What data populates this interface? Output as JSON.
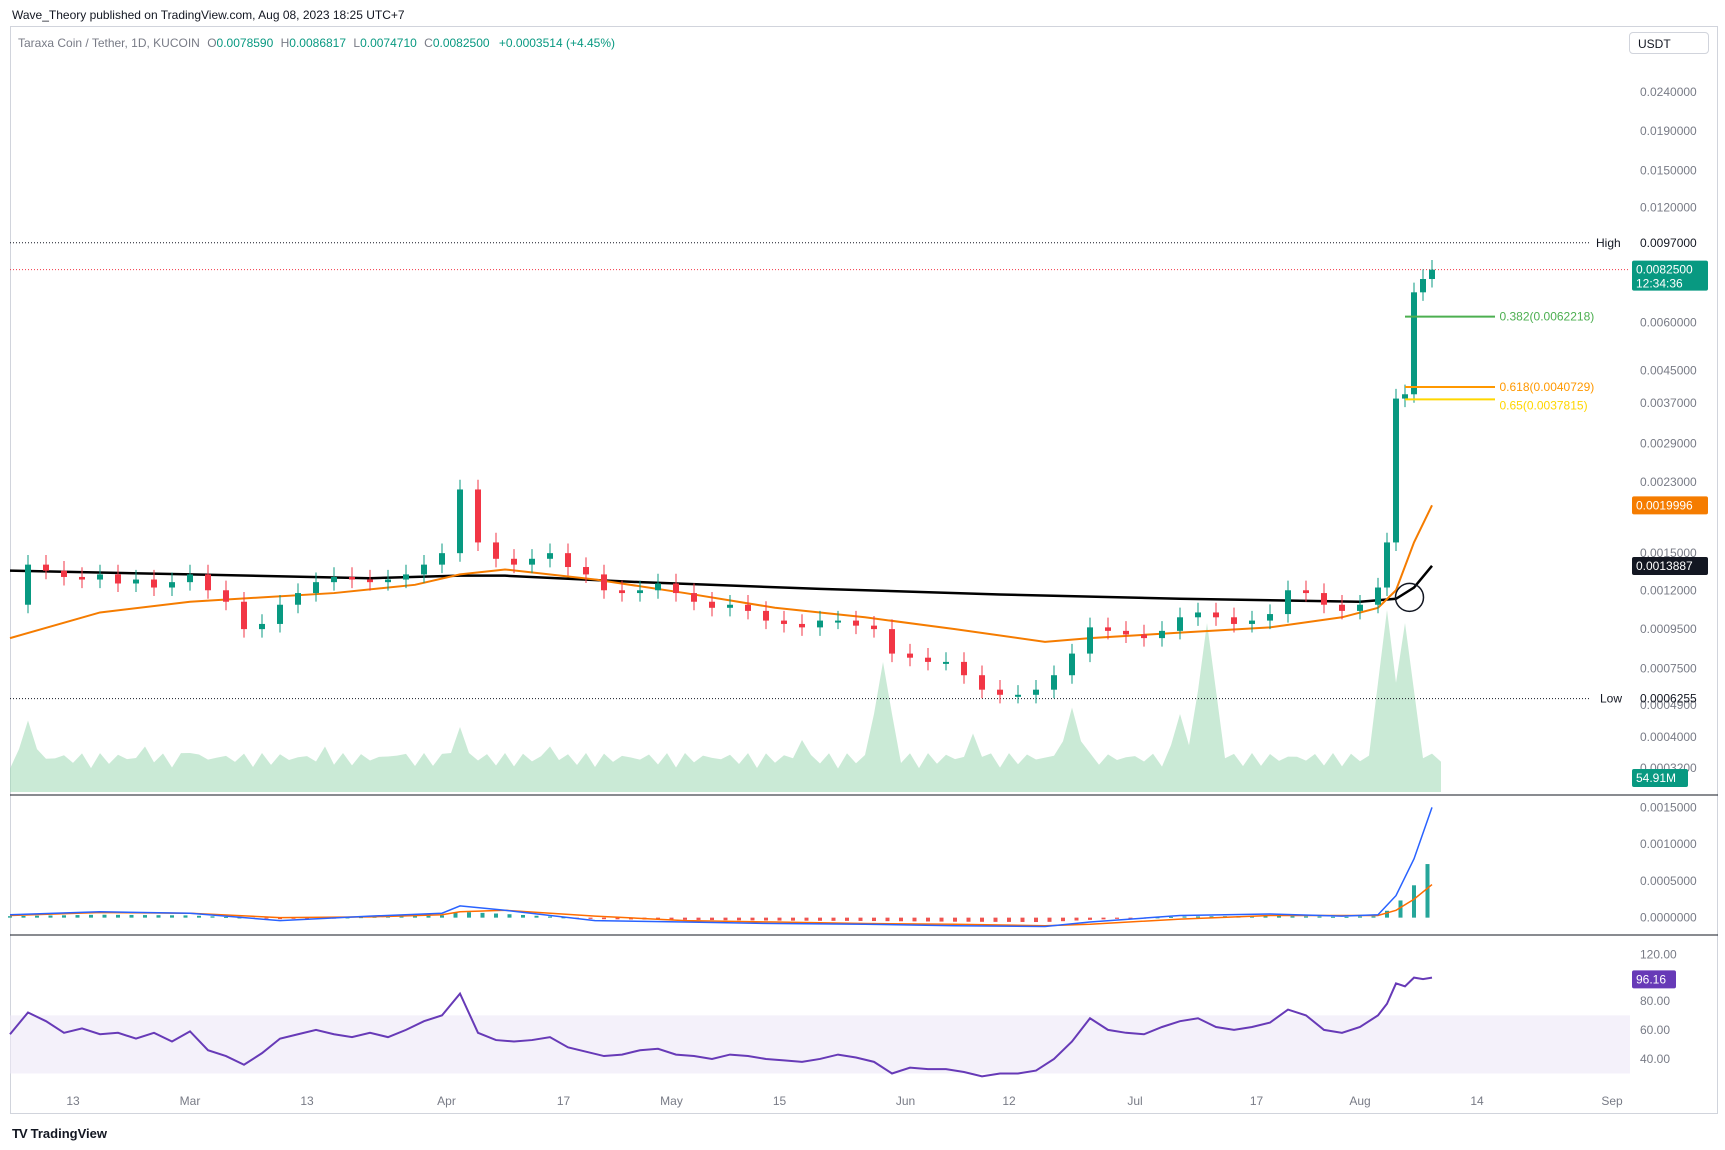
{
  "header": {
    "publish_line": "Wave_Theory published on TradingView.com, Aug 08, 2023 18:25 UTC+7"
  },
  "legend": {
    "symbol": "Taraxa Coin / Tether, 1D, KUCOIN",
    "o_key": "O",
    "o_val": "0.0078590",
    "h_key": "H",
    "h_val": "0.0086817",
    "l_key": "L",
    "l_val": "0.0074710",
    "c_key": "C",
    "c_val": "0.0082500",
    "change": "+0.0003514 (+4.45%)"
  },
  "currency_button": "USDT",
  "footer_logo": "TradingView",
  "colors": {
    "up": "#089981",
    "down": "#f23645",
    "ema_fast": "#f57c00",
    "ema_slow": "#000000",
    "fib_382": "#4caf50",
    "fib_618": "#ff9800",
    "fib_65": "#ffd600",
    "macd": "#2962ff",
    "signal": "#ff6d00",
    "rsi": "#673ab7"
  },
  "chart_data": {
    "type": "candlestick",
    "price_axis_ticks": [
      "0.0240000",
      "0.0190000",
      "0.0150000",
      "0.0120000",
      "0.0060000",
      "0.0045000",
      "0.0037000",
      "0.0029000",
      "0.0023000",
      "0.0015000",
      "0.0012000",
      "0.0009500",
      "0.0007500",
      "0.0004900",
      "0.0004000",
      "0.0003200"
    ],
    "price_axis_scale": "log",
    "high_label": "High",
    "high_value": "0.0097000",
    "low_label": "Low",
    "low_value": "0.0006255",
    "last_price": "0.0082500",
    "countdown": "12:34:36",
    "ema_fast_value": "0.0019996",
    "ema_slow_value": "0.0013887",
    "volume_label": "54.91M",
    "fib_levels": [
      {
        "label": "0.382(0.0062218)",
        "value": 0.0062218
      },
      {
        "label": "0.618(0.0040729)",
        "value": 0.0040729
      },
      {
        "label": "0.65(0.0037815)",
        "value": 0.0037815
      }
    ],
    "x_ticks": [
      "13",
      "Mar",
      "13",
      "Apr",
      "17",
      "May",
      "15",
      "Jun",
      "12",
      "Jul",
      "17",
      "Aug",
      "14",
      "Sep"
    ],
    "macd_ticks": [
      "0.0015000",
      "0.0010000",
      "0.0005000",
      "0.0000000"
    ],
    "rsi_ticks": [
      "120.00",
      "80.00",
      "60.00",
      "40.00"
    ],
    "rsi_value": "96.16",
    "price_path": [
      [
        0,
        0.0011
      ],
      [
        4,
        0.0014
      ],
      [
        8,
        0.00135
      ],
      [
        12,
        0.0013
      ],
      [
        16,
        0.00128
      ],
      [
        20,
        0.00132
      ],
      [
        24,
        0.00125
      ],
      [
        28,
        0.00128
      ],
      [
        32,
        0.00122
      ],
      [
        36,
        0.00126
      ],
      [
        40,
        0.00132
      ],
      [
        44,
        0.0012
      ],
      [
        48,
        0.00112
      ],
      [
        52,
        0.00095
      ],
      [
        56,
        0.00098
      ],
      [
        60,
        0.0011
      ],
      [
        64,
        0.00118
      ],
      [
        68,
        0.00126
      ],
      [
        72,
        0.0013
      ],
      [
        76,
        0.00128
      ],
      [
        80,
        0.00126
      ],
      [
        84,
        0.00128
      ],
      [
        88,
        0.00132
      ],
      [
        92,
        0.0014
      ],
      [
        96,
        0.0015
      ],
      [
        100,
        0.0022
      ],
      [
        104,
        0.0016
      ],
      [
        108,
        0.00145
      ],
      [
        112,
        0.0014
      ],
      [
        116,
        0.00145
      ],
      [
        120,
        0.0015
      ],
      [
        124,
        0.00138
      ],
      [
        128,
        0.00132
      ],
      [
        132,
        0.0012
      ],
      [
        136,
        0.00118
      ],
      [
        140,
        0.0012
      ],
      [
        144,
        0.00125
      ],
      [
        148,
        0.00118
      ],
      [
        152,
        0.00112
      ],
      [
        156,
        0.00108
      ],
      [
        160,
        0.0011
      ],
      [
        164,
        0.00106
      ],
      [
        168,
        0.001
      ],
      [
        172,
        0.00098
      ],
      [
        176,
        0.00096
      ],
      [
        180,
        0.001
      ],
      [
        184,
        0.001
      ],
      [
        188,
        0.00097
      ],
      [
        192,
        0.00095
      ],
      [
        196,
        0.00082
      ],
      [
        200,
        0.0008
      ],
      [
        204,
        0.00078
      ],
      [
        208,
        0.00078
      ],
      [
        212,
        0.00072
      ],
      [
        216,
        0.00066
      ],
      [
        220,
        0.00064
      ],
      [
        224,
        0.00064
      ],
      [
        228,
        0.00066
      ],
      [
        232,
        0.00072
      ],
      [
        236,
        0.00082
      ],
      [
        240,
        0.00096
      ],
      [
        244,
        0.00094
      ],
      [
        248,
        0.00092
      ],
      [
        252,
        0.0009
      ],
      [
        256,
        0.00094
      ],
      [
        260,
        0.00102
      ],
      [
        264,
        0.00105
      ],
      [
        268,
        0.00102
      ],
      [
        272,
        0.00098
      ],
      [
        276,
        0.001
      ],
      [
        280,
        0.00104
      ],
      [
        284,
        0.0012
      ],
      [
        288,
        0.00118
      ],
      [
        292,
        0.0011
      ],
      [
        296,
        0.00106
      ],
      [
        300,
        0.0011
      ],
      [
        304,
        0.00122
      ],
      [
        306,
        0.0016
      ],
      [
        308,
        0.0038
      ],
      [
        310,
        0.0039
      ],
      [
        312,
        0.0072
      ],
      [
        314,
        0.0078
      ],
      [
        316,
        0.00825
      ]
    ],
    "ema_fast_path": [
      [
        0,
        0.0009
      ],
      [
        20,
        0.00105
      ],
      [
        40,
        0.00112
      ],
      [
        56,
        0.00115
      ],
      [
        72,
        0.00118
      ],
      [
        90,
        0.00124
      ],
      [
        100,
        0.00132
      ],
      [
        110,
        0.00136
      ],
      [
        130,
        0.00128
      ],
      [
        150,
        0.00118
      ],
      [
        170,
        0.00108
      ],
      [
        190,
        0.00102
      ],
      [
        210,
        0.00095
      ],
      [
        230,
        0.00088
      ],
      [
        240,
        0.0009
      ],
      [
        260,
        0.00093
      ],
      [
        280,
        0.00096
      ],
      [
        296,
        0.00102
      ],
      [
        304,
        0.00108
      ],
      [
        308,
        0.0012
      ],
      [
        312,
        0.0016
      ],
      [
        316,
        0.002
      ]
    ],
    "ema_slow_path": [
      [
        0,
        0.00135
      ],
      [
        40,
        0.00132
      ],
      [
        80,
        0.00129
      ],
      [
        100,
        0.00131
      ],
      [
        110,
        0.00131
      ],
      [
        140,
        0.00126
      ],
      [
        180,
        0.00121
      ],
      [
        220,
        0.00117
      ],
      [
        260,
        0.00114
      ],
      [
        300,
        0.00112
      ],
      [
        308,
        0.00114
      ],
      [
        312,
        0.00122
      ],
      [
        316,
        0.00139
      ]
    ],
    "rsi_path": [
      [
        0,
        57
      ],
      [
        4,
        72
      ],
      [
        8,
        66
      ],
      [
        12,
        58
      ],
      [
        16,
        61
      ],
      [
        20,
        57
      ],
      [
        24,
        58
      ],
      [
        28,
        54
      ],
      [
        32,
        58
      ],
      [
        36,
        52
      ],
      [
        40,
        59
      ],
      [
        44,
        46
      ],
      [
        48,
        42
      ],
      [
        52,
        36
      ],
      [
        56,
        44
      ],
      [
        60,
        54
      ],
      [
        64,
        57
      ],
      [
        68,
        60
      ],
      [
        72,
        57
      ],
      [
        76,
        55
      ],
      [
        80,
        58
      ],
      [
        84,
        55
      ],
      [
        88,
        60
      ],
      [
        92,
        66
      ],
      [
        96,
        70
      ],
      [
        100,
        85
      ],
      [
        104,
        58
      ],
      [
        108,
        53
      ],
      [
        112,
        52
      ],
      [
        116,
        53
      ],
      [
        120,
        55
      ],
      [
        124,
        48
      ],
      [
        128,
        45
      ],
      [
        132,
        42
      ],
      [
        136,
        43
      ],
      [
        140,
        46
      ],
      [
        144,
        47
      ],
      [
        148,
        43
      ],
      [
        152,
        42
      ],
      [
        156,
        40
      ],
      [
        160,
        43
      ],
      [
        164,
        42
      ],
      [
        168,
        40
      ],
      [
        172,
        39
      ],
      [
        176,
        38
      ],
      [
        180,
        40
      ],
      [
        184,
        43
      ],
      [
        188,
        41
      ],
      [
        192,
        38
      ],
      [
        196,
        30
      ],
      [
        200,
        34
      ],
      [
        204,
        33
      ],
      [
        208,
        33
      ],
      [
        212,
        31
      ],
      [
        216,
        28
      ],
      [
        220,
        30
      ],
      [
        224,
        30
      ],
      [
        228,
        32
      ],
      [
        232,
        40
      ],
      [
        236,
        52
      ],
      [
        240,
        68
      ],
      [
        244,
        60
      ],
      [
        248,
        58
      ],
      [
        252,
        57
      ],
      [
        256,
        62
      ],
      [
        260,
        66
      ],
      [
        264,
        68
      ],
      [
        268,
        62
      ],
      [
        272,
        60
      ],
      [
        276,
        62
      ],
      [
        280,
        65
      ],
      [
        284,
        74
      ],
      [
        288,
        70
      ],
      [
        292,
        60
      ],
      [
        296,
        58
      ],
      [
        300,
        62
      ],
      [
        304,
        70
      ],
      [
        306,
        78
      ],
      [
        308,
        92
      ],
      [
        310,
        90
      ],
      [
        312,
        96
      ],
      [
        314,
        95
      ],
      [
        316,
        96
      ]
    ],
    "macd_path": [
      [
        0,
        4e-05
      ],
      [
        20,
        8e-05
      ],
      [
        40,
        6e-05
      ],
      [
        60,
        -4e-05
      ],
      [
        80,
        2e-05
      ],
      [
        96,
        6e-05
      ],
      [
        100,
        0.00016
      ],
      [
        110,
        0.0001
      ],
      [
        130,
        -4e-05
      ],
      [
        150,
        -6e-05
      ],
      [
        170,
        -8e-05
      ],
      [
        190,
        -9e-05
      ],
      [
        210,
        -0.00011
      ],
      [
        230,
        -0.00012
      ],
      [
        240,
        -6e-05
      ],
      [
        260,
        3e-05
      ],
      [
        280,
        5e-05
      ],
      [
        296,
        2e-05
      ],
      [
        304,
        4e-05
      ],
      [
        308,
        0.0003
      ],
      [
        312,
        0.0008
      ],
      [
        316,
        0.0015
      ]
    ],
    "signal_path": [
      [
        0,
        3e-05
      ],
      [
        20,
        7e-05
      ],
      [
        40,
        6e-05
      ],
      [
        60,
        0.0
      ],
      [
        80,
        1e-05
      ],
      [
        96,
        4e-05
      ],
      [
        100,
        8e-05
      ],
      [
        110,
        0.0001
      ],
      [
        130,
        2e-05
      ],
      [
        150,
        -4e-05
      ],
      [
        170,
        -6e-05
      ],
      [
        190,
        -8e-05
      ],
      [
        210,
        -9e-05
      ],
      [
        230,
        -0.00011
      ],
      [
        240,
        -9e-05
      ],
      [
        260,
        -2e-05
      ],
      [
        280,
        3e-05
      ],
      [
        296,
        3e-05
      ],
      [
        304,
        3e-05
      ],
      [
        308,
        0.0001
      ],
      [
        312,
        0.00025
      ],
      [
        316,
        0.00045
      ]
    ],
    "volume_spikes": [
      [
        4,
        0.55
      ],
      [
        30,
        0.35
      ],
      [
        40,
        0.3
      ],
      [
        56,
        0.25
      ],
      [
        70,
        0.35
      ],
      [
        86,
        0.28
      ],
      [
        100,
        0.5
      ],
      [
        120,
        0.35
      ],
      [
        150,
        0.3
      ],
      [
        176,
        0.4
      ],
      [
        194,
        1.0
      ],
      [
        214,
        0.45
      ],
      [
        236,
        0.65
      ],
      [
        260,
        0.6
      ],
      [
        266,
        1.3
      ],
      [
        306,
        1.4
      ],
      [
        310,
        1.3
      ]
    ]
  }
}
